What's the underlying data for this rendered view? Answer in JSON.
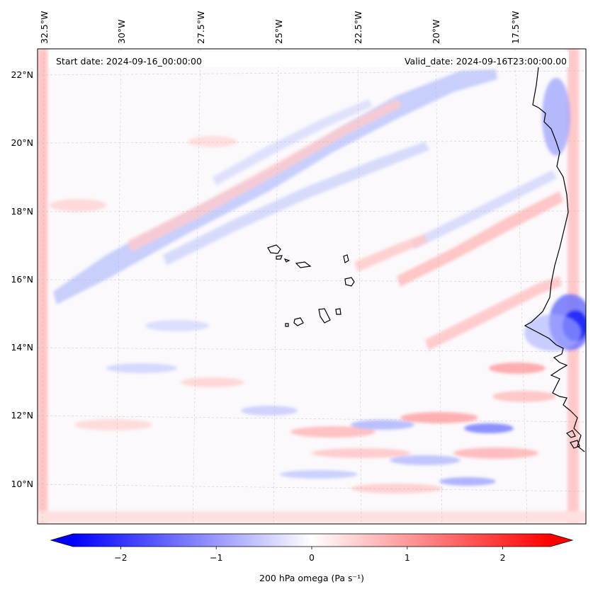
{
  "header": {
    "start_date": "Start date: 2024-09-16_00:00:00",
    "valid_date": "Valid_date: 2024-09-16T23:00:00.00"
  },
  "map": {
    "longitude_labels": [
      "32.5°W",
      "30°W",
      "27.5°W",
      "25°W",
      "22.5°W",
      "20°W",
      "17.5°W"
    ],
    "latitude_labels": [
      "22°N",
      "20°N",
      "18°N",
      "16°N",
      "14°N",
      "12°N",
      "10°N"
    ],
    "lon_values": [
      -32.5,
      -30,
      -27.5,
      -25,
      -22.5,
      -20,
      -17.5
    ],
    "lat_values": [
      22,
      20,
      18,
      16,
      14,
      12,
      10
    ],
    "lon_range": [
      -32.75,
      -15.5
    ],
    "lat_range": [
      8.85,
      22.7
    ],
    "gridlines": true,
    "field": "200 hPa vertical velocity (omega)"
  },
  "colorbar": {
    "label": "200 hPa omega (Pa s⁻¹)",
    "ticks": [
      "−2",
      "−1",
      "0",
      "1",
      "2"
    ],
    "tick_values": [
      -2,
      -1,
      0,
      1,
      2
    ],
    "range": [
      -2.5,
      2.5
    ],
    "extend": "both",
    "colormap": "bwr",
    "color_min": "#0000ff",
    "color_mid": "#ffffff",
    "color_max": "#ff0000"
  }
}
